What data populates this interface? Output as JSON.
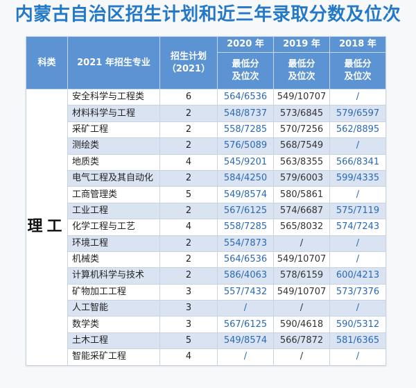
{
  "title": "内蒙古自治区招生计划和近三年录取分数及位次",
  "table": {
    "headers": {
      "kelei": "科类",
      "major": "2021 年招生专业",
      "plan_line1": "招生计划",
      "plan_line2": "（2021）",
      "years": [
        "2020 年",
        "2019 年",
        "2018 年"
      ],
      "score_line1": "最低分",
      "score_line2": "及位次"
    },
    "kelei_value": "理工",
    "rows": [
      {
        "major": "安全科学与工程类",
        "plan": "6",
        "y2020": "564/6536",
        "y2019": "549/10707",
        "y2018": "/"
      },
      {
        "major": "材料科学与工程",
        "plan": "2",
        "y2020": "548/8737",
        "y2019": "573/6845",
        "y2018": "579/6597"
      },
      {
        "major": "采矿工程",
        "plan": "2",
        "y2020": "558/7285",
        "y2019": "570/7256",
        "y2018": "562/8895"
      },
      {
        "major": "测绘类",
        "plan": "2",
        "y2020": "576/5089",
        "y2019": "568/7549",
        "y2018": "/"
      },
      {
        "major": "地质类",
        "plan": "4",
        "y2020": "545/9201",
        "y2019": "563/8355",
        "y2018": "566/8341"
      },
      {
        "major": "电气工程及其自动化",
        "plan": "2",
        "y2020": "584/4250",
        "y2019": "579/6003",
        "y2018": "599/4335"
      },
      {
        "major": "工商管理类",
        "plan": "5",
        "y2020": "549/8574",
        "y2019": "580/5861",
        "y2018": "/"
      },
      {
        "major": "工业工程",
        "plan": "2",
        "y2020": "567/6125",
        "y2019": "574/6687",
        "y2018": "575/7119"
      },
      {
        "major": "化学工程与工艺",
        "plan": "4",
        "y2020": "558/7285",
        "y2019": "565/8032",
        "y2018": "574/7243"
      },
      {
        "major": "环境工程",
        "plan": "2",
        "y2020": "554/7873",
        "y2019": "/",
        "y2018": "/"
      },
      {
        "major": "机械类",
        "plan": "2",
        "y2020": "564/6536",
        "y2019": "549/10707",
        "y2018": "/"
      },
      {
        "major": "计算机科学与技术",
        "plan": "2",
        "y2020": "586/4063",
        "y2019": "578/6159",
        "y2018": "600/4213"
      },
      {
        "major": "矿物加工工程",
        "plan": "3",
        "y2020": "557/7432",
        "y2019": "549/10707",
        "y2018": "573/7376"
      },
      {
        "major": "人工智能",
        "plan": "3",
        "y2020": "/",
        "y2019": "/",
        "y2018": "/"
      },
      {
        "major": "数学类",
        "plan": "3",
        "y2020": "567/6125",
        "y2019": "590/4618",
        "y2018": "590/5312"
      },
      {
        "major": "土木工程",
        "plan": "5",
        "y2020": "549/8574",
        "y2019": "566/7872",
        "y2018": "581/6365"
      },
      {
        "major": "智能采矿工程",
        "plan": "4",
        "y2020": "/",
        "y2019": "/",
        "y2018": "/"
      }
    ]
  },
  "colors": {
    "title": "#2378c8",
    "header_bg": "#5b93d3",
    "stripe": "#d9e3f2",
    "score_blue": "#2a6ab3"
  }
}
